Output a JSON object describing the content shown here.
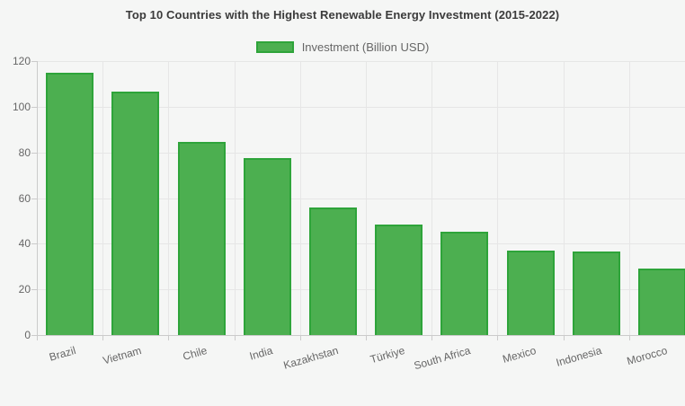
{
  "title": "Top 10 Countries with the Highest Renewable Energy Investment (2015-2022)",
  "legend": {
    "label": "Investment (Billion USD)"
  },
  "colors": {
    "bar_fill": "#4caf50",
    "bar_border": "#2ea43a",
    "background": "#f5f6f5",
    "gridline": "#e6e6e6",
    "axis_line": "#cbcbcb",
    "title_text": "#3b3b3b",
    "tick_text": "#666666"
  },
  "chart_data": {
    "type": "bar",
    "title": "Top 10 Countries with the Highest Renewable Energy Investment (2015-2022)",
    "categories": [
      "Brazil",
      "Vietnam",
      "Chile",
      "India",
      "Kazakhstan",
      "Türkiye",
      "South Africa",
      "Mexico",
      "Indonesia",
      "Morocco"
    ],
    "series": [
      {
        "name": "Investment (Billion USD)",
        "values": [
          114.8,
          106.6,
          84.4,
          77.4,
          55.7,
          48.2,
          45.4,
          37.1,
          36.4,
          29.3
        ]
      }
    ],
    "xlabel": "",
    "ylabel": "",
    "ylim": [
      0,
      120
    ],
    "yticks": [
      0,
      20,
      40,
      60,
      80,
      100,
      120
    ],
    "grid": true,
    "legend_position": "top",
    "x_label_rotation_deg": -16
  }
}
